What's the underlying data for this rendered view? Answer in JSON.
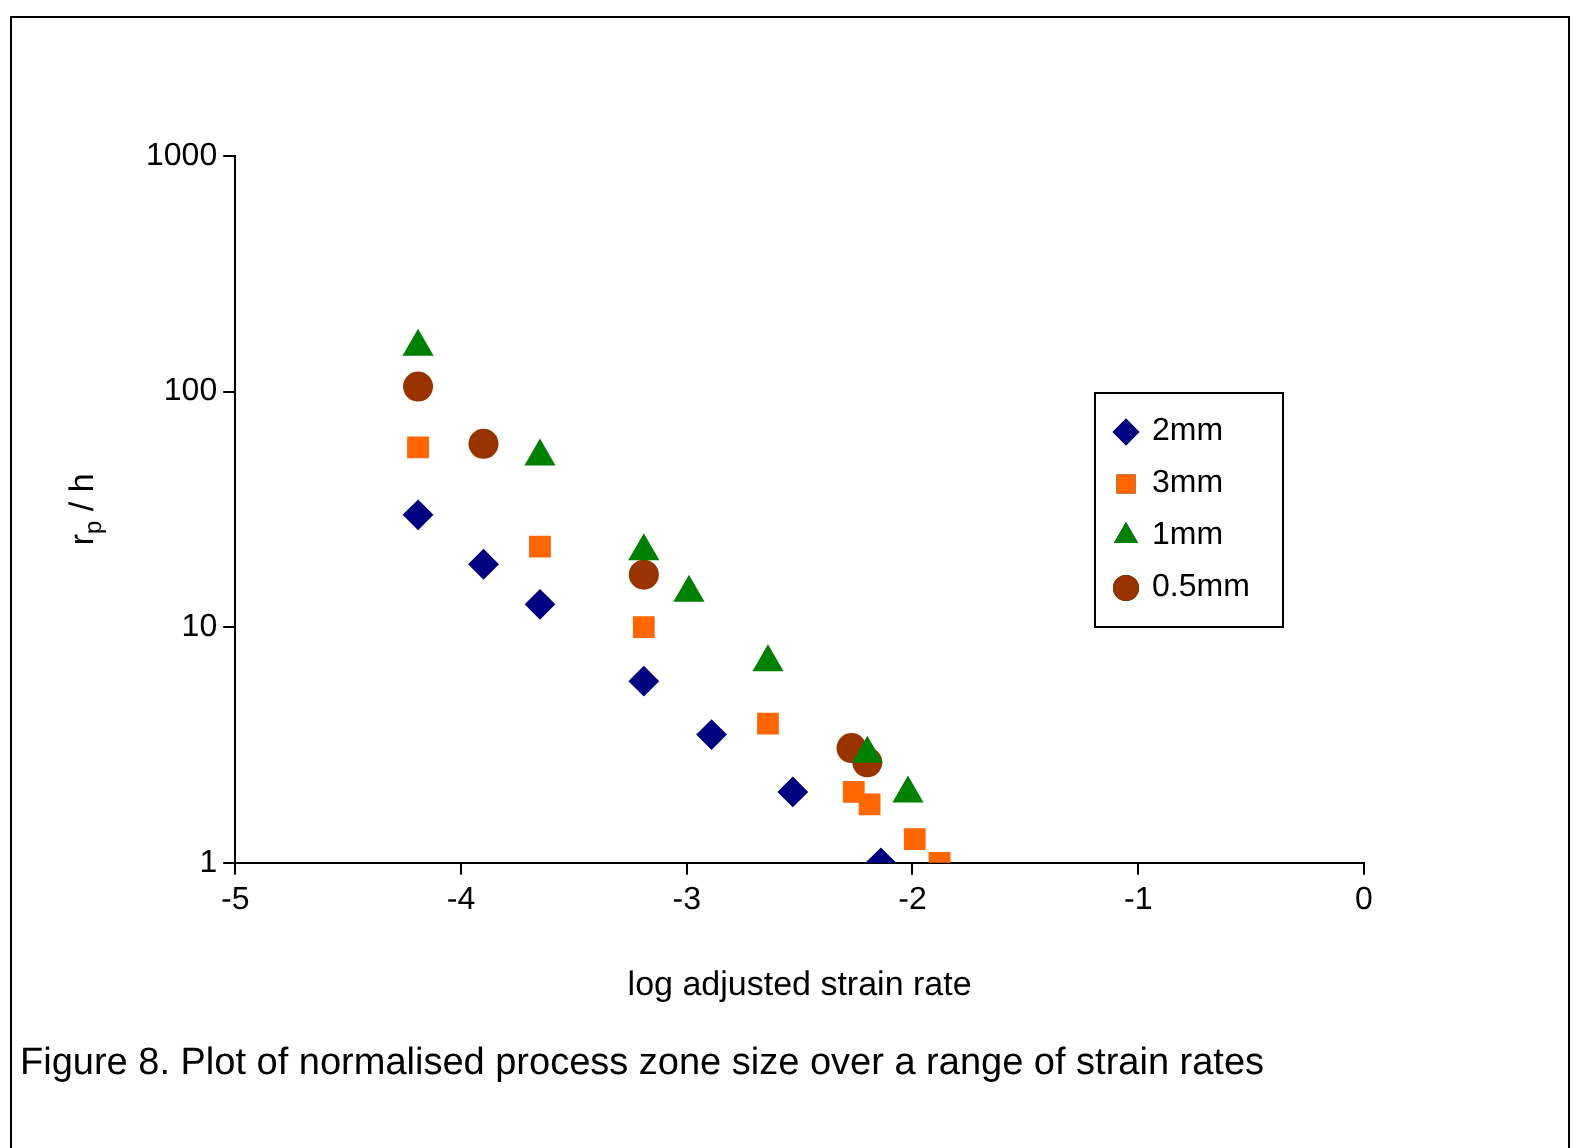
{
  "chart_data": {
    "type": "scatter",
    "xlabel": "log adjusted strain rate",
    "ylabel": "r$_{p}$ / h",
    "xlim": [
      -5,
      0
    ],
    "xticks": [
      -5,
      -4,
      -3,
      -2,
      -1,
      0
    ],
    "ylim": [
      1,
      1000
    ],
    "yticks": [
      1,
      10,
      100,
      1000
    ],
    "log": "y",
    "grid": false,
    "legend": "right",
    "annotations": [
      "Figure 8. Plot of normalised process zone size over a range of strain rates"
    ],
    "series": [
      {
        "name": "2mm",
        "color": "#000080",
        "marker": "diamond",
        "x": [
          -4.19,
          -3.9,
          -3.65,
          -3.19,
          -2.89,
          -2.53,
          -2.14
        ],
        "values": [
          30,
          18.5,
          12.5,
          5.9,
          3.5,
          2.0,
          1.0
        ]
      },
      {
        "name": "3mm",
        "color": "#ff6600",
        "marker": "square",
        "x": [
          -4.19,
          -3.65,
          -3.19,
          -2.64,
          -2.26,
          -2.19,
          -1.99,
          -1.88
        ],
        "values": [
          58,
          22,
          10,
          3.9,
          2.0,
          1.77,
          1.26,
          1.0
        ]
      },
      {
        "name": "1mm",
        "color": "#008000",
        "marker": "triangle",
        "x": [
          -4.19,
          -3.65,
          -3.19,
          -2.99,
          -2.64,
          -2.2,
          -2.02
        ],
        "values": [
          155,
          53,
          21,
          14,
          7.1,
          2.9,
          1.97
        ]
      },
      {
        "name": "0.5mm",
        "color": "#993300",
        "marker": "circle",
        "x": [
          -4.19,
          -3.9,
          -3.19,
          -2.27,
          -2.2
        ],
        "values": [
          105,
          60,
          16.7,
          3.07,
          2.67
        ]
      }
    ]
  }
}
